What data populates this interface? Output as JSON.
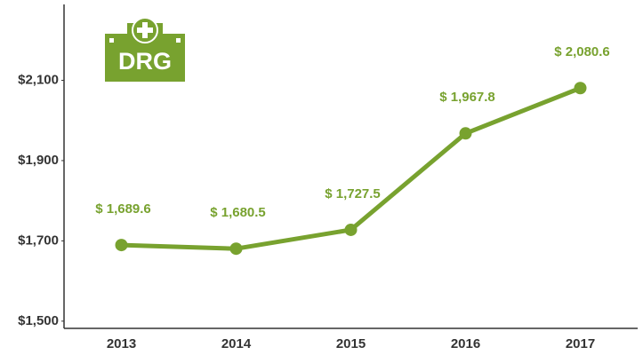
{
  "chart_data": {
    "type": "line",
    "icon_label": "DRG",
    "categories": [
      "2013",
      "2014",
      "2015",
      "2016",
      "2017"
    ],
    "values": [
      1689.6,
      1680.5,
      1727.5,
      1967.8,
      2080.6
    ],
    "value_labels": [
      "$ 1,689.6",
      "$ 1,680.5",
      "$ 1,727.5",
      "$ 1,967.8",
      "$ 2,080.6"
    ],
    "color": "#78a22f",
    "ylim": [
      1482,
      2289
    ],
    "yticks": [
      {
        "value": 1500,
        "label": "$1,500"
      },
      {
        "value": 1700,
        "label": "$1,700"
      },
      {
        "value": 1900,
        "label": "$1,900"
      },
      {
        "value": 2100,
        "label": "$2,100"
      }
    ],
    "grid": false
  }
}
